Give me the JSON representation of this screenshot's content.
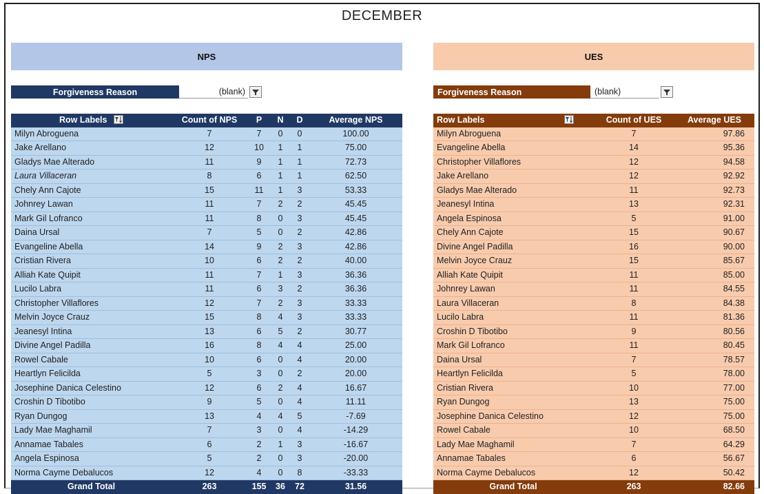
{
  "title": "DECEMBER",
  "nps": {
    "banner": "NPS",
    "filter": {
      "label": "Forgiveness Reason",
      "value": "(blank)"
    },
    "headers": [
      "Row Labels",
      "Count of NPS",
      "P",
      "N",
      "D",
      "Average NPS"
    ],
    "rows": [
      [
        "Milyn Abroguena",
        "7",
        "7",
        "0",
        "0",
        "100.00"
      ],
      [
        "Jake Arellano",
        "12",
        "10",
        "1",
        "1",
        "75.00"
      ],
      [
        "Gladys Mae Alterado",
        "11",
        "9",
        "1",
        "1",
        "72.73"
      ],
      [
        "Laura Villaceran",
        "8",
        "6",
        "1",
        "1",
        "62.50"
      ],
      [
        "Chely Ann Cajote",
        "15",
        "11",
        "1",
        "3",
        "53.33"
      ],
      [
        "Johnrey Lawan",
        "11",
        "7",
        "2",
        "2",
        "45.45"
      ],
      [
        "Mark Gil Lofranco",
        "11",
        "8",
        "0",
        "3",
        "45.45"
      ],
      [
        "Daina Ursal",
        "7",
        "5",
        "0",
        "2",
        "42.86"
      ],
      [
        "Evangeline Abella",
        "14",
        "9",
        "2",
        "3",
        "42.86"
      ],
      [
        "Cristian Rivera",
        "10",
        "6",
        "2",
        "2",
        "40.00"
      ],
      [
        "Alliah Kate Quipit",
        "11",
        "7",
        "1",
        "3",
        "36.36"
      ],
      [
        "Lucilo Labra",
        "11",
        "6",
        "3",
        "2",
        "36.36"
      ],
      [
        "Christopher Villaflores",
        "12",
        "7",
        "2",
        "3",
        "33.33"
      ],
      [
        "Melvin Joyce Crauz",
        "15",
        "8",
        "4",
        "3",
        "33.33"
      ],
      [
        "Jeanesyl Intina",
        "13",
        "6",
        "5",
        "2",
        "30.77"
      ],
      [
        "Divine Angel Padilla",
        "16",
        "8",
        "4",
        "4",
        "25.00"
      ],
      [
        "Rowel Cabale",
        "10",
        "6",
        "0",
        "4",
        "20.00"
      ],
      [
        "Heartlyn Felicilda",
        "5",
        "3",
        "0",
        "2",
        "20.00"
      ],
      [
        "Josephine Danica Celestino",
        "12",
        "6",
        "2",
        "4",
        "16.67"
      ],
      [
        "Croshin D Tibotibo",
        "9",
        "5",
        "0",
        "4",
        "11.11"
      ],
      [
        "Ryan Dungog",
        "13",
        "4",
        "4",
        "5",
        "-7.69"
      ],
      [
        "Lady Mae Maghamil",
        "7",
        "3",
        "0",
        "4",
        "-14.29"
      ],
      [
        "Annamae Tabales",
        "6",
        "2",
        "1",
        "3",
        "-16.67"
      ],
      [
        "Angela Espinosa",
        "5",
        "2",
        "0",
        "3",
        "-20.00"
      ],
      [
        "Norma Cayme Debalucos",
        "12",
        "4",
        "0",
        "8",
        "-33.33"
      ]
    ],
    "total": [
      "Grand Total",
      "263",
      "155",
      "36",
      "72",
      "31.56"
    ]
  },
  "ues": {
    "banner": "UES",
    "filter": {
      "label": "Forgiveness Reason",
      "value": "(blank)"
    },
    "headers": [
      "Row Labels",
      "Count of UES",
      "Average UES"
    ],
    "rows": [
      [
        "Milyn Abroguena",
        "7",
        "97.86"
      ],
      [
        "Evangeline Abella",
        "14",
        "95.36"
      ],
      [
        "Christopher Villaflores",
        "12",
        "94.58"
      ],
      [
        "Jake Arellano",
        "12",
        "92.92"
      ],
      [
        "Gladys Mae Alterado",
        "11",
        "92.73"
      ],
      [
        "Jeanesyl Intina",
        "13",
        "92.31"
      ],
      [
        "Angela Espinosa",
        "5",
        "91.00"
      ],
      [
        "Chely Ann Cajote",
        "15",
        "90.67"
      ],
      [
        "Divine Angel Padilla",
        "16",
        "90.00"
      ],
      [
        "Melvin Joyce Crauz",
        "15",
        "85.67"
      ],
      [
        "Alliah Kate Quipit",
        "11",
        "85.00"
      ],
      [
        "Johnrey Lawan",
        "11",
        "84.55"
      ],
      [
        "Laura Villaceran",
        "8",
        "84.38"
      ],
      [
        "Lucilo Labra",
        "11",
        "81.36"
      ],
      [
        "Croshin D Tibotibo",
        "9",
        "80.56"
      ],
      [
        "Mark Gil Lofranco",
        "11",
        "80.45"
      ],
      [
        "Daina Ursal",
        "7",
        "78.57"
      ],
      [
        "Heartlyn Felicilda",
        "5",
        "78.00"
      ],
      [
        "Cristian Rivera",
        "10",
        "77.00"
      ],
      [
        "Ryan Dungog",
        "13",
        "75.00"
      ],
      [
        "Josephine Danica Celestino",
        "12",
        "75.00"
      ],
      [
        "Rowel Cabale",
        "10",
        "68.50"
      ],
      [
        "Lady Mae Maghamil",
        "7",
        "64.29"
      ],
      [
        "Annamae Tabales",
        "6",
        "56.67"
      ],
      [
        "Norma Cayme Debalucos",
        "12",
        "50.42"
      ]
    ],
    "total": [
      "Grand Total",
      "263",
      "82.66"
    ]
  },
  "colors": {
    "nps_header": "#203864",
    "nps_body": "#bdd7ee",
    "nps_banner": "#b4c6e7",
    "ues_header": "#843c0c",
    "ues_body": "#f8cbad",
    "ues_banner": "#f8cbad"
  },
  "icons": {
    "filter": "filter-funnel-icon",
    "sort": "sort-filter-icon"
  }
}
